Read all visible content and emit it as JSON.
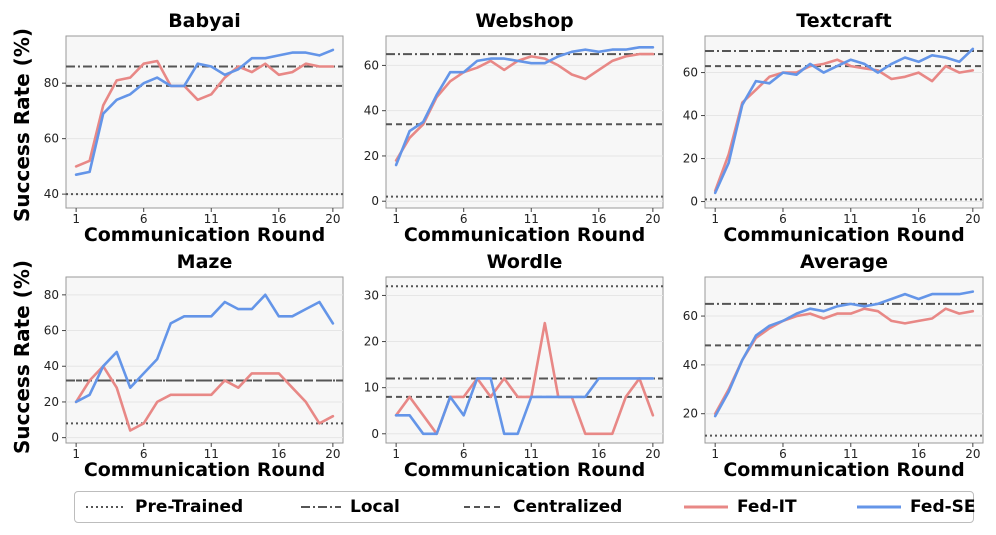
{
  "figure": {
    "ylabel": "Success Rate (%)",
    "xlabel": "Communication Round",
    "xticks": [
      1,
      6,
      11,
      16,
      20
    ],
    "styles": {
      "pretrained": {
        "color": "#555555",
        "dash": "dotted"
      },
      "local": {
        "color": "#555555",
        "dash": "dashdot"
      },
      "centralized": {
        "color": "#555555",
        "dash": "dashed"
      },
      "fedit": {
        "color": "#e88886"
      },
      "fedse": {
        "color": "#6495e8"
      }
    }
  },
  "legend": {
    "items": [
      {
        "key": "pretrained",
        "label": "Pre-Trained"
      },
      {
        "key": "local",
        "label": "Local"
      },
      {
        "key": "centralized",
        "label": "Centralized"
      },
      {
        "key": "fedit",
        "label": "Fed-IT"
      },
      {
        "key": "fedse",
        "label": "Fed-SE"
      }
    ]
  },
  "chart_data": [
    {
      "type": "line",
      "title": "Babyai",
      "x": [
        1,
        2,
        3,
        4,
        5,
        6,
        7,
        8,
        9,
        10,
        11,
        12,
        13,
        14,
        15,
        16,
        17,
        18,
        19,
        20
      ],
      "ylim": [
        35,
        97
      ],
      "yticks": [
        40,
        60,
        80
      ],
      "baselines": {
        "pretrained": 40,
        "local": 86,
        "centralized": 79
      },
      "series": [
        {
          "name": "Fed-IT",
          "values": [
            50,
            52,
            72,
            81,
            82,
            87,
            88,
            79,
            79,
            74,
            76,
            82,
            86,
            84,
            87,
            83,
            84,
            87,
            86,
            86
          ]
        },
        {
          "name": "Fed-SE",
          "values": [
            47,
            48,
            69,
            74,
            76,
            80,
            82,
            79,
            79,
            87,
            86,
            83,
            85,
            89,
            89,
            90,
            91,
            91,
            90,
            92
          ]
        }
      ]
    },
    {
      "type": "line",
      "title": "Webshop",
      "x": [
        1,
        2,
        3,
        4,
        5,
        6,
        7,
        8,
        9,
        10,
        11,
        12,
        13,
        14,
        15,
        16,
        17,
        18,
        19,
        20
      ],
      "ylim": [
        -3,
        73
      ],
      "yticks": [
        0,
        20,
        40,
        60
      ],
      "baselines": {
        "pretrained": 2,
        "local": 65,
        "centralized": 34
      },
      "series": [
        {
          "name": "Fed-IT",
          "values": [
            18,
            28,
            34,
            46,
            53,
            57,
            59,
            62,
            58,
            62,
            64,
            63,
            60,
            56,
            54,
            58,
            62,
            64,
            65,
            65
          ]
        },
        {
          "name": "Fed-SE",
          "values": [
            16,
            31,
            35,
            47,
            57,
            57,
            62,
            63,
            63,
            62,
            61,
            61,
            64,
            66,
            67,
            66,
            67,
            67,
            68,
            68
          ]
        }
      ]
    },
    {
      "type": "line",
      "title": "Textcraft",
      "x": [
        1,
        2,
        3,
        4,
        5,
        6,
        7,
        8,
        9,
        10,
        11,
        12,
        13,
        14,
        15,
        16,
        17,
        18,
        19,
        20
      ],
      "ylim": [
        -3,
        77
      ],
      "yticks": [
        0,
        20,
        40,
        60
      ],
      "baselines": {
        "pretrained": 1,
        "local": 70,
        "centralized": 63
      },
      "series": [
        {
          "name": "Fed-IT",
          "values": [
            5,
            22,
            46,
            52,
            58,
            60,
            60,
            63,
            64,
            66,
            63,
            62,
            61,
            57,
            58,
            60,
            56,
            63,
            60,
            61
          ]
        },
        {
          "name": "Fed-SE",
          "values": [
            4,
            18,
            45,
            56,
            55,
            60,
            59,
            64,
            60,
            63,
            66,
            64,
            60,
            64,
            67,
            65,
            68,
            67,
            65,
            71
          ]
        }
      ]
    },
    {
      "type": "line",
      "title": "Maze",
      "x": [
        1,
        2,
        3,
        4,
        5,
        6,
        7,
        8,
        9,
        10,
        11,
        12,
        13,
        14,
        15,
        16,
        17,
        18,
        19,
        20
      ],
      "ylim": [
        -3,
        90
      ],
      "yticks": [
        0,
        20,
        40,
        60,
        80
      ],
      "baselines": {
        "pretrained": 8,
        "local": 32,
        "centralized": 32
      },
      "series": [
        {
          "name": "Fed-IT",
          "values": [
            20,
            32,
            40,
            28,
            4,
            8,
            20,
            24,
            24,
            24,
            24,
            32,
            28,
            36,
            36,
            36,
            28,
            20,
            8,
            12
          ]
        },
        {
          "name": "Fed-SE",
          "values": [
            20,
            24,
            40,
            48,
            28,
            36,
            44,
            64,
            68,
            68,
            68,
            76,
            72,
            72,
            80,
            68,
            68,
            72,
            76,
            64
          ]
        }
      ]
    },
    {
      "type": "line",
      "title": "Wordle",
      "x": [
        1,
        2,
        3,
        4,
        5,
        6,
        7,
        8,
        9,
        10,
        11,
        12,
        13,
        14,
        15,
        16,
        17,
        18,
        19,
        20
      ],
      "ylim": [
        -2,
        34
      ],
      "yticks": [
        0,
        10,
        20,
        30
      ],
      "baselines": {
        "pretrained": 32,
        "local": 12,
        "centralized": 8
      },
      "series": [
        {
          "name": "Fed-IT",
          "values": [
            4,
            8,
            4,
            0,
            8,
            8,
            12,
            8,
            12,
            8,
            8,
            24,
            8,
            8,
            0,
            0,
            0,
            8,
            12,
            4
          ]
        },
        {
          "name": "Fed-SE",
          "values": [
            4,
            4,
            0,
            0,
            8,
            4,
            12,
            12,
            0,
            0,
            8,
            8,
            8,
            8,
            8,
            12,
            12,
            12,
            12,
            12
          ]
        }
      ]
    },
    {
      "type": "line",
      "title": "Average",
      "x": [
        1,
        2,
        3,
        4,
        5,
        6,
        7,
        8,
        9,
        10,
        11,
        12,
        13,
        14,
        15,
        16,
        17,
        18,
        19,
        20
      ],
      "ylim": [
        8,
        76
      ],
      "yticks": [
        20,
        40,
        60
      ],
      "baselines": {
        "pretrained": 11,
        "local": 65,
        "centralized": 48
      },
      "series": [
        {
          "name": "Fed-IT",
          "values": [
            20,
            30,
            42,
            51,
            55,
            58,
            60,
            61,
            59,
            61,
            61,
            63,
            62,
            58,
            57,
            58,
            59,
            63,
            61,
            62
          ]
        },
        {
          "name": "Fed-SE",
          "values": [
            19,
            29,
            42,
            52,
            56,
            58,
            61,
            63,
            62,
            64,
            65,
            64,
            65,
            67,
            69,
            67,
            69,
            69,
            69,
            70
          ]
        }
      ]
    }
  ]
}
